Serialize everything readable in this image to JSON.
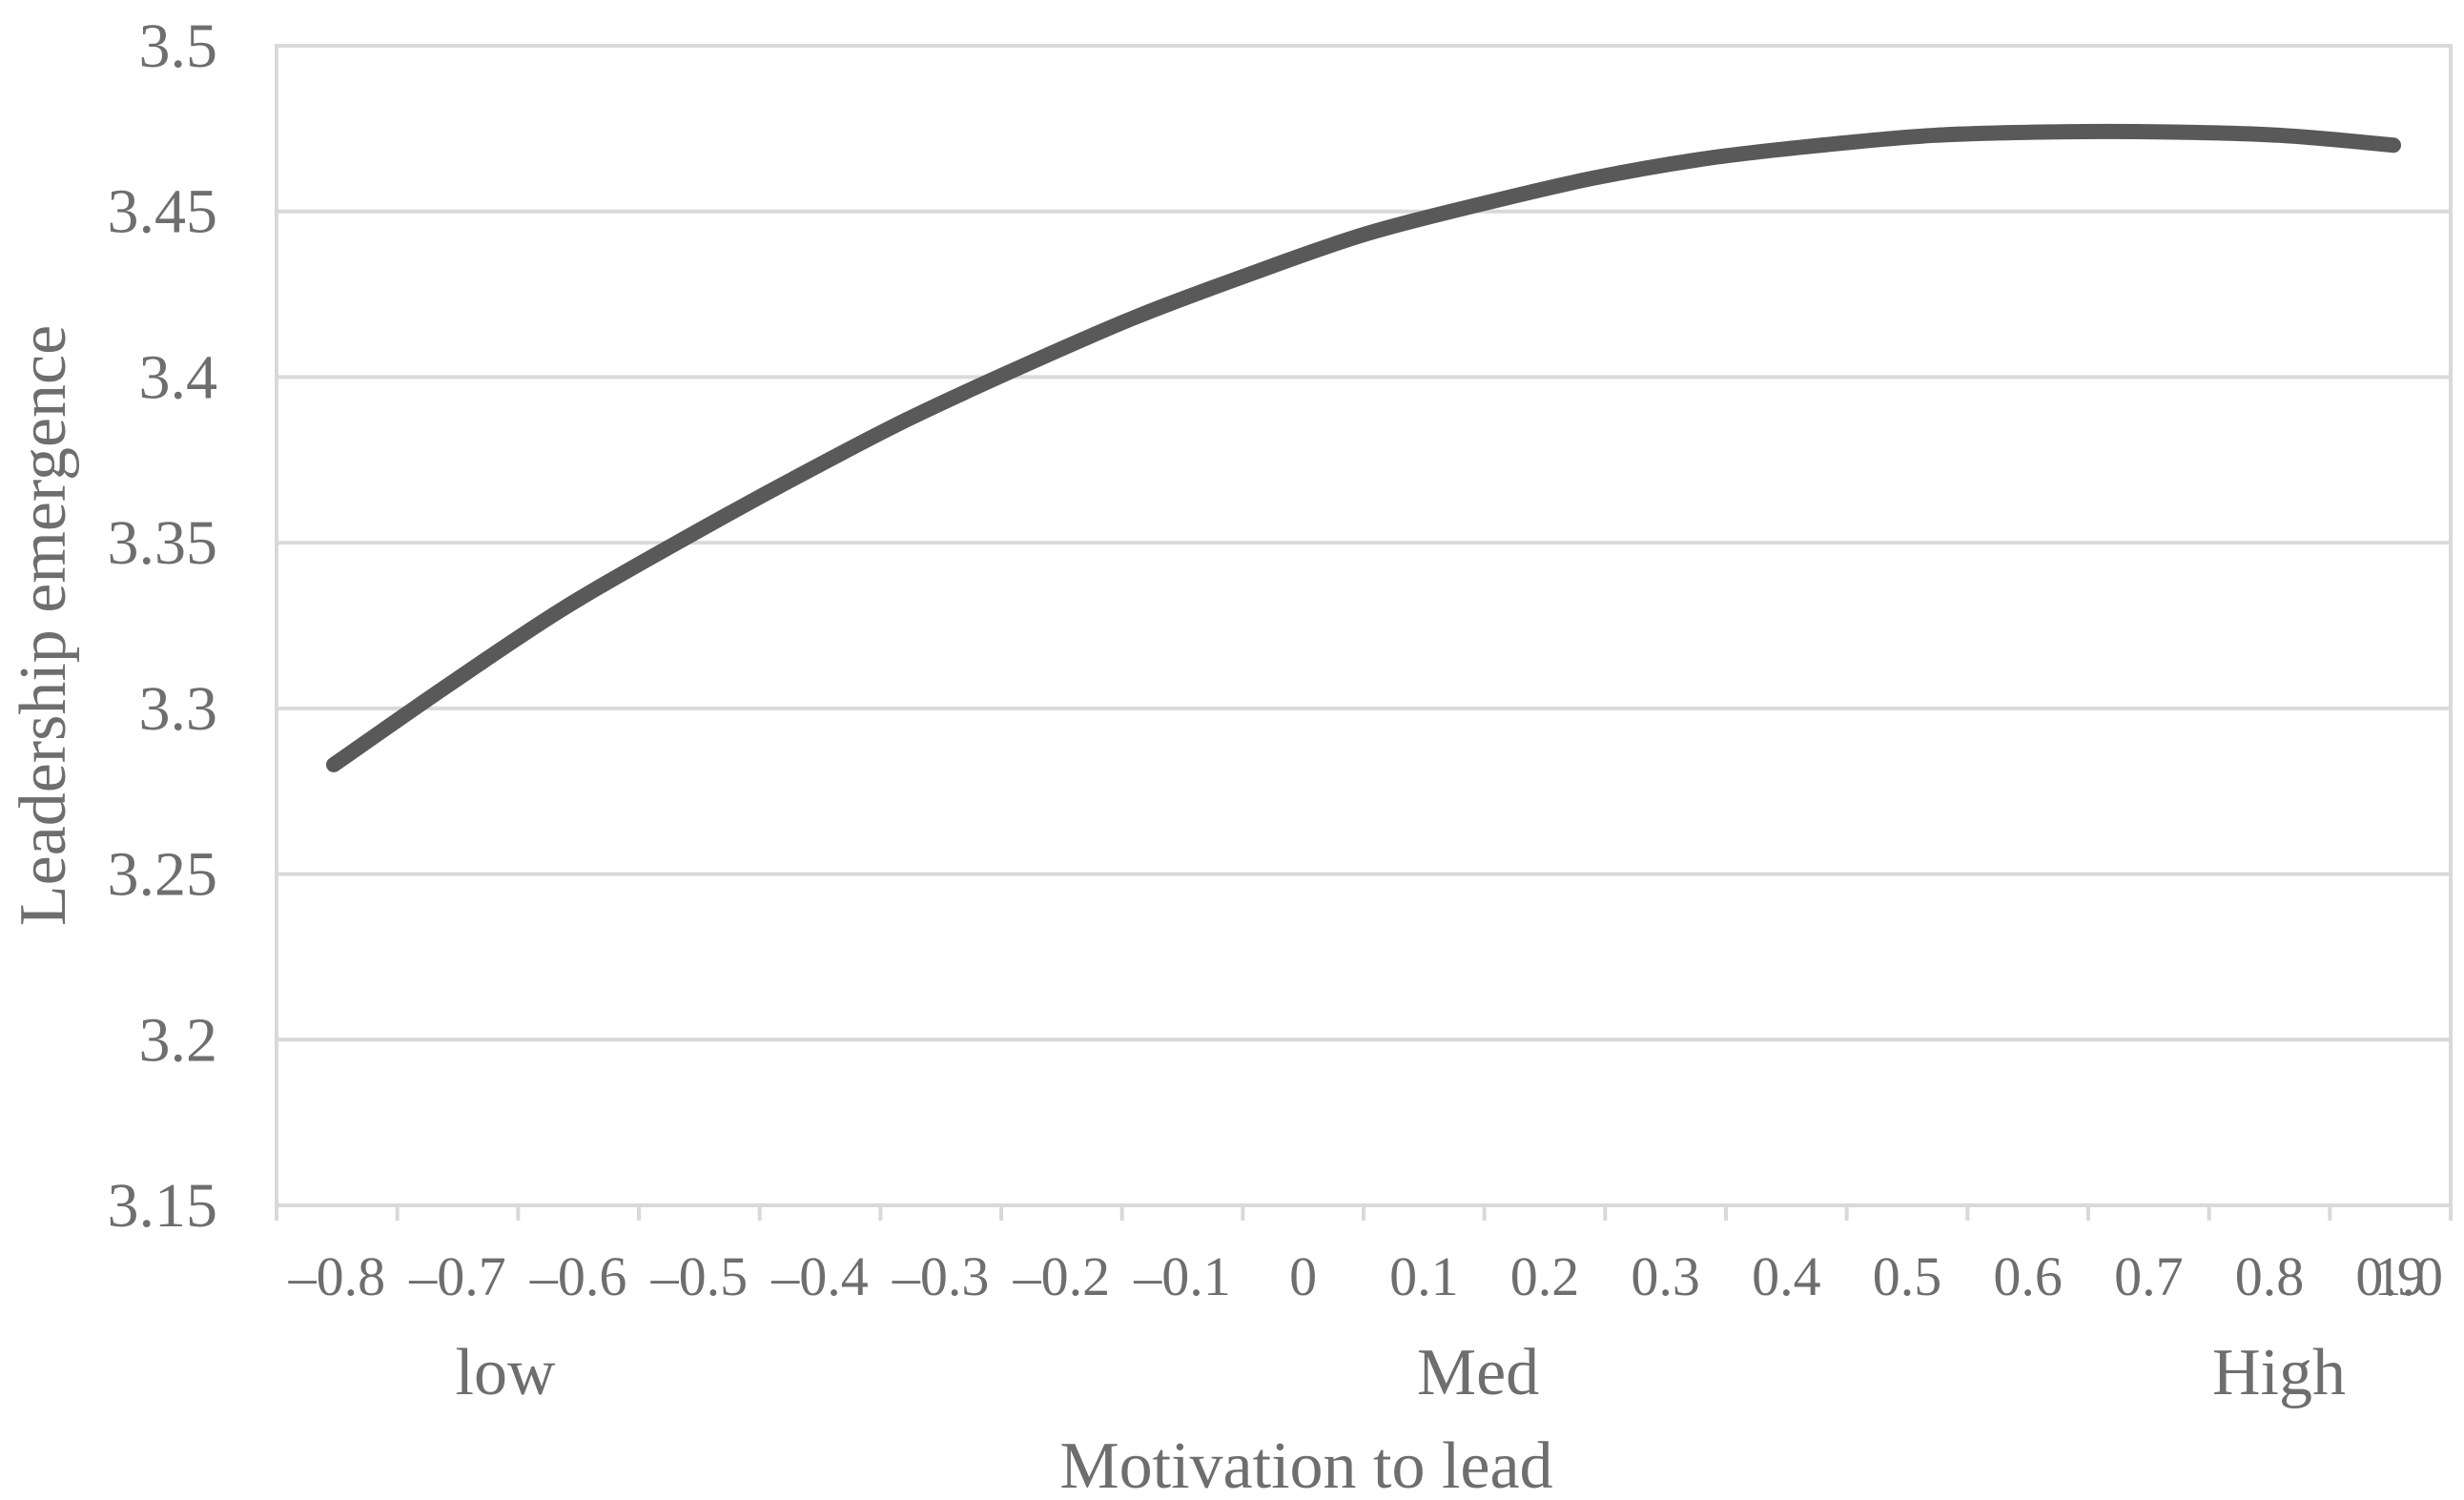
{
  "chart_data": {
    "type": "line",
    "title": "",
    "xlabel": "Motivation to lead",
    "ylabel": "Leadership emergence",
    "x_tick_labels": [
      "–0.8",
      "–0.7",
      "–0.6",
      "–0.5",
      "–0.4",
      "–0.3",
      "–0.2",
      "–0.1",
      "0",
      "0.1",
      "0.2",
      "0.3",
      "0.4",
      "0.5",
      "0.6",
      "0.7",
      "0.8",
      "0.9",
      "1.0"
    ],
    "x_group_labels": [
      {
        "label": "low",
        "x": -0.7
      },
      {
        "label": "Med",
        "x": 0.15
      },
      {
        "label": "High",
        "x": 0.85
      }
    ],
    "y_tick_labels": [
      "3.15",
      "3.2",
      "3.25",
      "3.3",
      "3.35",
      "3.4",
      "3.45",
      "3.5"
    ],
    "xlim": [
      -0.9,
      1.0
    ],
    "ylim": [
      3.15,
      3.5
    ],
    "grid": true,
    "legend": "none",
    "series": [
      {
        "color": "#595959",
        "x": [
          -0.85,
          -0.75,
          -0.65,
          -0.55,
          -0.45,
          -0.35,
          -0.25,
          -0.15,
          -0.05,
          0.05,
          0.15,
          0.25,
          0.35,
          0.45,
          0.55,
          0.65,
          0.75,
          0.85,
          0.95
        ],
        "y": [
          3.283,
          3.307,
          3.33,
          3.35,
          3.369,
          3.387,
          3.403,
          3.418,
          3.431,
          3.443,
          3.452,
          3.46,
          3.466,
          3.47,
          3.473,
          3.474,
          3.474,
          3.473,
          3.47
        ]
      }
    ]
  }
}
